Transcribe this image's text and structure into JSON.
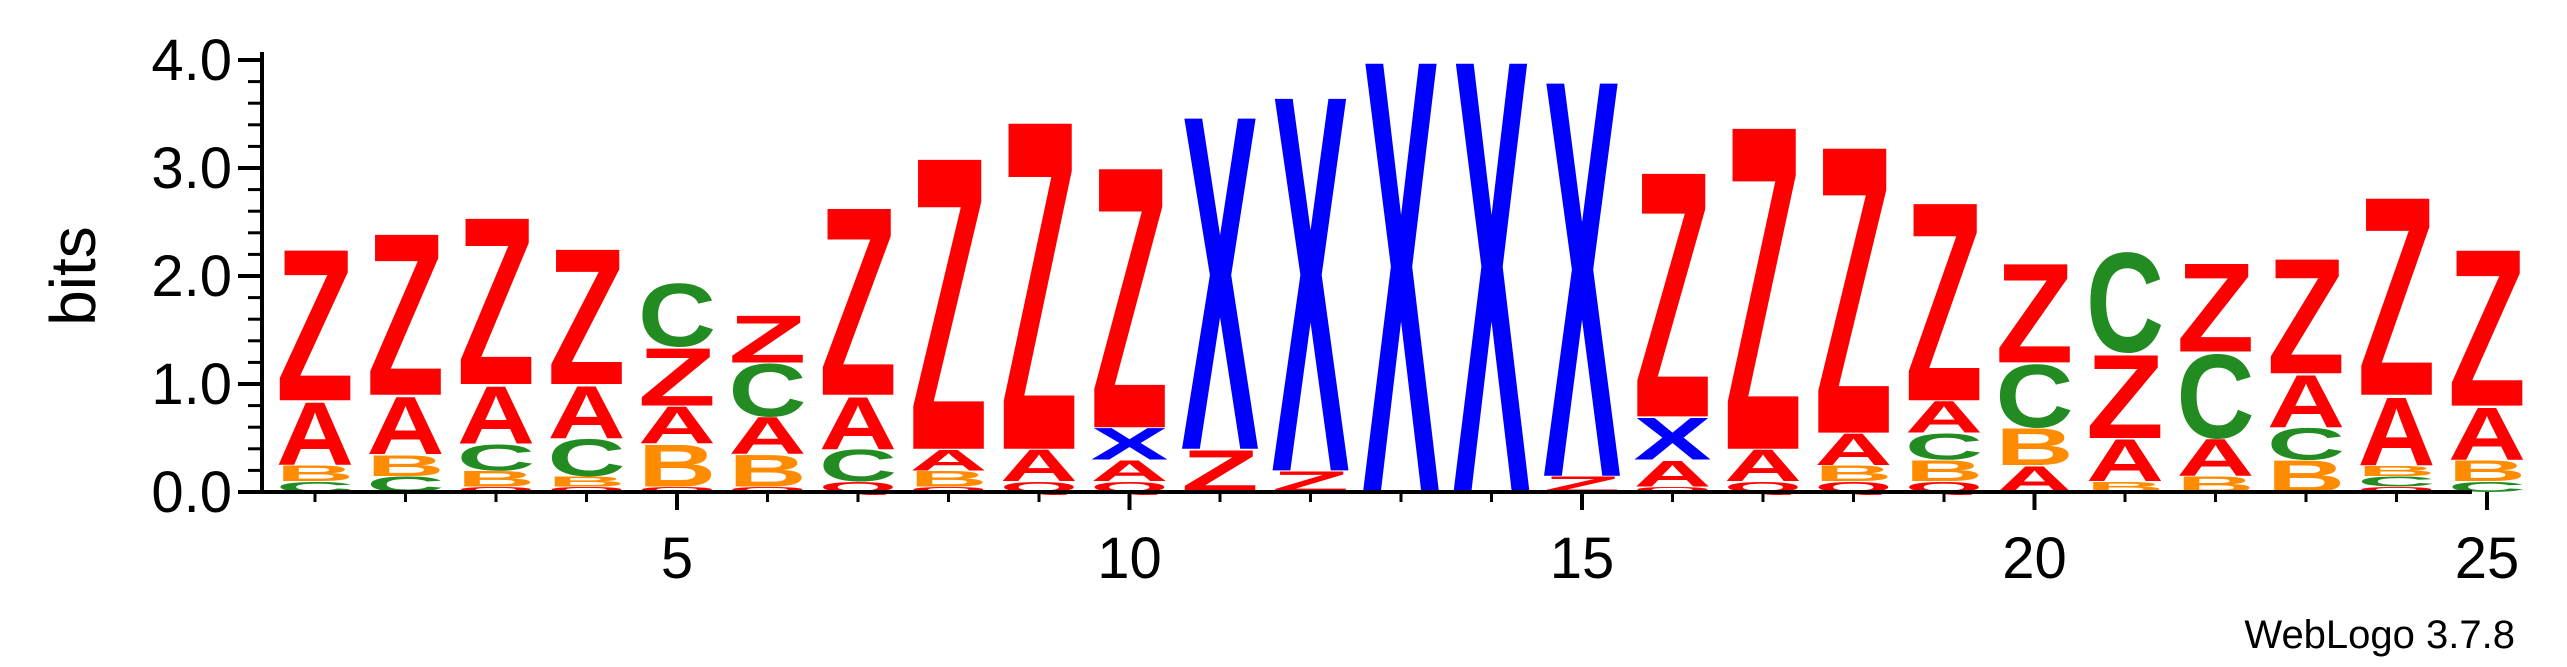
{
  "chart_data": {
    "type": "sequence-logo",
    "ylabel": "bits",
    "ylim": [
      0,
      4.0
    ],
    "yticks": [
      {
        "value": 0,
        "label": "0.0"
      },
      {
        "value": 1,
        "label": "1.0"
      },
      {
        "value": 2,
        "label": "2.0"
      },
      {
        "value": 3,
        "label": "3.0"
      },
      {
        "value": 4,
        "label": "4.0"
      }
    ],
    "ytick_minor_step": 0.2,
    "xticks": [
      {
        "value": 5,
        "label": "5"
      },
      {
        "value": 10,
        "label": "10"
      },
      {
        "value": 15,
        "label": "15"
      },
      {
        "value": 20,
        "label": "20"
      },
      {
        "value": 25,
        "label": "25"
      }
    ],
    "xlim": [
      0.5,
      26.5
    ],
    "footer": "WebLogo 3.7.8",
    "colors": {
      "Z": "#ff0000",
      "A": "#ff0000",
      "X": "#0000ff",
      "C": "#228b22",
      "B": "#ff8c00",
      "Q": "#ff0000"
    },
    "positions": [
      {
        "pos": 1,
        "stack": [
          {
            "letter": "C",
            "bits": 0.1
          },
          {
            "letter": "B",
            "bits": 0.15
          },
          {
            "letter": "A",
            "bits": 0.6
          },
          {
            "letter": "Z",
            "bits": 1.45
          }
        ]
      },
      {
        "pos": 2,
        "stack": [
          {
            "letter": "C",
            "bits": 0.15
          },
          {
            "letter": "B",
            "bits": 0.2
          },
          {
            "letter": "A",
            "bits": 0.55
          },
          {
            "letter": "Z",
            "bits": 1.55
          }
        ]
      },
      {
        "pos": 3,
        "stack": [
          {
            "letter": "Q",
            "bits": 0.05
          },
          {
            "letter": "B",
            "bits": 0.15
          },
          {
            "letter": "C",
            "bits": 0.25
          },
          {
            "letter": "A",
            "bits": 0.55
          },
          {
            "letter": "Z",
            "bits": 1.6
          }
        ]
      },
      {
        "pos": 4,
        "stack": [
          {
            "letter": "Q",
            "bits": 0.05
          },
          {
            "letter": "B",
            "bits": 0.1
          },
          {
            "letter": "C",
            "bits": 0.35
          },
          {
            "letter": "A",
            "bits": 0.5
          },
          {
            "letter": "Z",
            "bits": 1.3
          }
        ]
      },
      {
        "pos": 5,
        "stack": [
          {
            "letter": "Q",
            "bits": 0.05
          },
          {
            "letter": "B",
            "bits": 0.4
          },
          {
            "letter": "A",
            "bits": 0.35
          },
          {
            "letter": "Z",
            "bits": 0.55
          },
          {
            "letter": "C",
            "bits": 0.6
          }
        ]
      },
      {
        "pos": 6,
        "stack": [
          {
            "letter": "Q",
            "bits": 0.05
          },
          {
            "letter": "B",
            "bits": 0.3
          },
          {
            "letter": "A",
            "bits": 0.35
          },
          {
            "letter": "C",
            "bits": 0.5
          },
          {
            "letter": "Z",
            "bits": 0.45
          }
        ]
      },
      {
        "pos": 7,
        "stack": [
          {
            "letter": "Q",
            "bits": 0.1
          },
          {
            "letter": "C",
            "bits": 0.3
          },
          {
            "letter": "A",
            "bits": 0.5
          },
          {
            "letter": "Z",
            "bits": 1.8
          }
        ]
      },
      {
        "pos": 8,
        "stack": [
          {
            "letter": "Q",
            "bits": 0.05
          },
          {
            "letter": "B",
            "bits": 0.15
          },
          {
            "letter": "A",
            "bits": 0.2
          },
          {
            "letter": "Z",
            "bits": 2.8
          }
        ]
      },
      {
        "pos": 9,
        "stack": [
          {
            "letter": "Q",
            "bits": 0.1
          },
          {
            "letter": "A",
            "bits": 0.3
          },
          {
            "letter": "Z",
            "bits": 3.15
          }
        ]
      },
      {
        "pos": 10,
        "stack": [
          {
            "letter": "Q",
            "bits": 0.1
          },
          {
            "letter": "A",
            "bits": 0.2
          },
          {
            "letter": "X",
            "bits": 0.3
          },
          {
            "letter": "Z",
            "bits": 2.5
          }
        ]
      },
      {
        "pos": 11,
        "stack": [
          {
            "letter": "Z",
            "bits": 0.4
          },
          {
            "letter": "X",
            "bits": 3.2
          }
        ]
      },
      {
        "pos": 12,
        "stack": [
          {
            "letter": "Z",
            "bits": 0.2
          },
          {
            "letter": "X",
            "bits": 3.6
          }
        ]
      },
      {
        "pos": 13,
        "stack": [
          {
            "letter": "X",
            "bits": 4.15
          }
        ]
      },
      {
        "pos": 14,
        "stack": [
          {
            "letter": "X",
            "bits": 4.15
          }
        ]
      },
      {
        "pos": 15,
        "stack": [
          {
            "letter": "Z",
            "bits": 0.15
          },
          {
            "letter": "X",
            "bits": 3.8
          }
        ]
      },
      {
        "pos": 16,
        "stack": [
          {
            "letter": "Q",
            "bits": 0.05
          },
          {
            "letter": "A",
            "bits": 0.25
          },
          {
            "letter": "X",
            "bits": 0.4
          },
          {
            "letter": "Z",
            "bits": 2.35
          }
        ]
      },
      {
        "pos": 17,
        "stack": [
          {
            "letter": "Q",
            "bits": 0.1
          },
          {
            "letter": "A",
            "bits": 0.3
          },
          {
            "letter": "Z",
            "bits": 3.1
          }
        ]
      },
      {
        "pos": 18,
        "stack": [
          {
            "letter": "Q",
            "bits": 0.1
          },
          {
            "letter": "B",
            "bits": 0.15
          },
          {
            "letter": "A",
            "bits": 0.3
          },
          {
            "letter": "Z",
            "bits": 2.75
          }
        ]
      },
      {
        "pos": 19,
        "stack": [
          {
            "letter": "Q",
            "bits": 0.1
          },
          {
            "letter": "B",
            "bits": 0.2
          },
          {
            "letter": "C",
            "bits": 0.25
          },
          {
            "letter": "A",
            "bits": 0.3
          },
          {
            "letter": "Z",
            "bits": 1.9
          }
        ]
      },
      {
        "pos": 20,
        "stack": [
          {
            "letter": "A",
            "bits": 0.25
          },
          {
            "letter": "B",
            "bits": 0.35
          },
          {
            "letter": "C",
            "bits": 0.6
          },
          {
            "letter": "Z",
            "bits": 0.95
          }
        ]
      },
      {
        "pos": 21,
        "stack": [
          {
            "letter": "B",
            "bits": 0.1
          },
          {
            "letter": "A",
            "bits": 0.4
          },
          {
            "letter": "Z",
            "bits": 0.8
          },
          {
            "letter": "C",
            "bits": 0.95
          }
        ]
      },
      {
        "pos": 22,
        "stack": [
          {
            "letter": "B",
            "bits": 0.15
          },
          {
            "letter": "A",
            "bits": 0.35
          },
          {
            "letter": "C",
            "bits": 0.8
          },
          {
            "letter": "Z",
            "bits": 0.85
          }
        ]
      },
      {
        "pos": 23,
        "stack": [
          {
            "letter": "B",
            "bits": 0.3
          },
          {
            "letter": "C",
            "bits": 0.3
          },
          {
            "letter": "A",
            "bits": 0.5
          },
          {
            "letter": "Z",
            "bits": 1.1
          }
        ]
      },
      {
        "pos": 24,
        "stack": [
          {
            "letter": "Q",
            "bits": 0.05
          },
          {
            "letter": "C",
            "bits": 0.1
          },
          {
            "letter": "B",
            "bits": 0.1
          },
          {
            "letter": "A",
            "bits": 0.65
          },
          {
            "letter": "Z",
            "bits": 1.9
          }
        ]
      },
      {
        "pos": 25,
        "stack": [
          {
            "letter": "C",
            "bits": 0.1
          },
          {
            "letter": "B",
            "bits": 0.2
          },
          {
            "letter": "A",
            "bits": 0.5
          },
          {
            "letter": "Z",
            "bits": 1.5
          }
        ]
      }
    ]
  }
}
